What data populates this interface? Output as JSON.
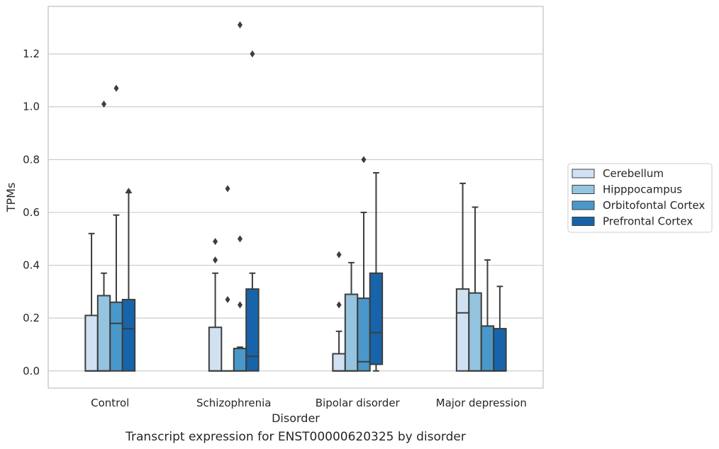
{
  "chart_data": {
    "type": "box",
    "xlabel": "Disorder",
    "ylabel": "TPMs",
    "caption": "Transcript expression for ENST00000620325 by disorder",
    "ylim": [
      -0.065,
      1.38
    ],
    "yticks": [
      "0.0",
      "0.2",
      "0.4",
      "0.6",
      "0.8",
      "1.0",
      "1.2"
    ],
    "yticks_values": [
      0.0,
      0.2,
      0.4,
      0.6,
      0.8,
      1.0,
      1.2
    ],
    "grid": "horizontal",
    "legend_position": "right",
    "categories": [
      "Control",
      "Schizophrenia",
      "Bipolar disorder",
      "Major depression"
    ],
    "series": [
      {
        "name": "Cerebellum",
        "color": "#d0e1f2",
        "boxes": [
          {
            "q1": 0.0,
            "median": 0.0,
            "q3": 0.21,
            "whisker_low": 0.0,
            "whisker_high": 0.52,
            "outliers": []
          },
          {
            "q1": 0.0,
            "median": 0.0,
            "q3": 0.165,
            "whisker_low": 0.0,
            "whisker_high": 0.37,
            "outliers": [
              0.42,
              0.49
            ]
          },
          {
            "q1": 0.0,
            "median": 0.0,
            "q3": 0.065,
            "whisker_low": 0.0,
            "whisker_high": 0.15,
            "outliers": [
              0.25,
              0.44
            ]
          },
          {
            "q1": 0.0,
            "median": 0.22,
            "q3": 0.31,
            "whisker_low": 0.0,
            "whisker_high": 0.71,
            "outliers": []
          }
        ]
      },
      {
        "name": "Hipppocampus",
        "color": "#94c4df",
        "boxes": [
          {
            "q1": 0.0,
            "median": 0.0,
            "q3": 0.285,
            "whisker_low": 0.0,
            "whisker_high": 0.37,
            "outliers": [
              1.01
            ]
          },
          {
            "q1": 0.0,
            "median": 0.0,
            "q3": 0.0,
            "whisker_low": 0.0,
            "whisker_high": 0.0,
            "outliers": [
              0.27,
              0.69
            ]
          },
          {
            "q1": 0.0,
            "median": 0.0,
            "q3": 0.29,
            "whisker_low": 0.0,
            "whisker_high": 0.41,
            "outliers": []
          },
          {
            "q1": 0.0,
            "median": 0.0,
            "q3": 0.295,
            "whisker_low": 0.0,
            "whisker_high": 0.62,
            "outliers": []
          }
        ]
      },
      {
        "name": "Orbitofontal Cortex",
        "color": "#4a98c9",
        "boxes": [
          {
            "q1": 0.0,
            "median": 0.18,
            "q3": 0.26,
            "whisker_low": 0.0,
            "whisker_high": 0.59,
            "outliers": [
              1.07
            ]
          },
          {
            "q1": 0.0,
            "median": 0.0,
            "q3": 0.085,
            "whisker_low": 0.0,
            "whisker_high": 0.09,
            "outliers": [
              0.25,
              0.5,
              1.31
            ]
          },
          {
            "q1": 0.0,
            "median": 0.035,
            "q3": 0.275,
            "whisker_low": 0.0,
            "whisker_high": 0.6,
            "outliers": [
              0.8
            ]
          },
          {
            "q1": 0.0,
            "median": 0.0,
            "q3": 0.17,
            "whisker_low": 0.0,
            "whisker_high": 0.42,
            "outliers": []
          }
        ]
      },
      {
        "name": "Prefrontal Cortex",
        "color": "#1764ab",
        "boxes": [
          {
            "q1": 0.0,
            "median": 0.16,
            "q3": 0.27,
            "whisker_low": 0.0,
            "whisker_high": 0.675,
            "outliers": [
              0.68
            ]
          },
          {
            "q1": 0.0,
            "median": 0.055,
            "q3": 0.31,
            "whisker_low": 0.0,
            "whisker_high": 0.37,
            "outliers": [
              1.2
            ]
          },
          {
            "q1": 0.025,
            "median": 0.145,
            "q3": 0.37,
            "whisker_low": 0.0,
            "whisker_high": 0.75,
            "outliers": []
          },
          {
            "q1": 0.0,
            "median": 0.0,
            "q3": 0.16,
            "whisker_low": 0.0,
            "whisker_high": 0.32,
            "outliers": []
          }
        ]
      }
    ]
  }
}
